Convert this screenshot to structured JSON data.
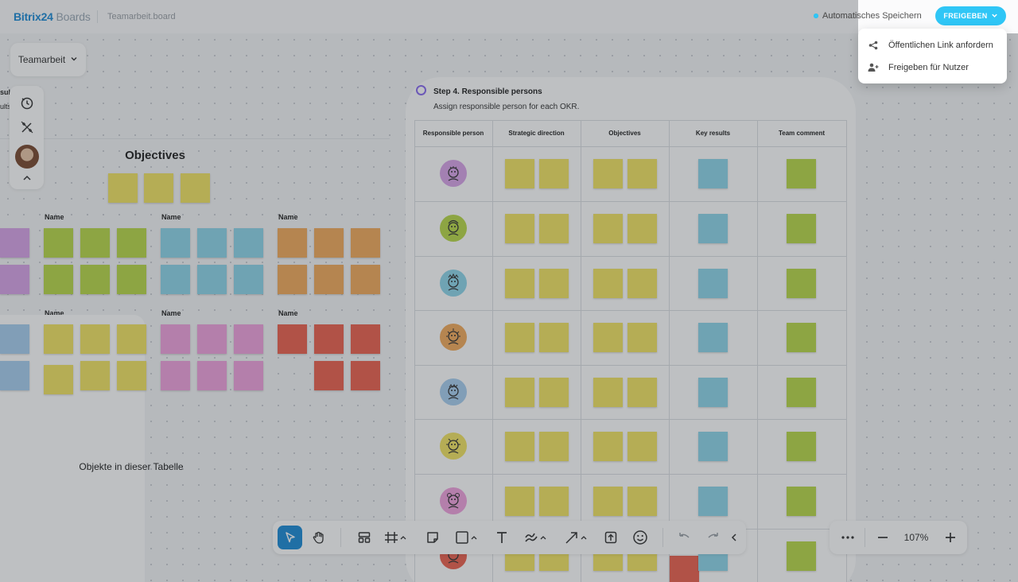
{
  "header": {
    "logo_main": "Bitrix24",
    "logo_sub": "Boards",
    "board_name": "Teamarbeit.board",
    "autosave_label": "Automatisches Speichern",
    "share_button": "FREIGEBEN"
  },
  "share_menu": {
    "items": [
      {
        "label": "Öffentlichen Link anfordern",
        "icon": "share-icon"
      },
      {
        "label": "Freigeben für Nutzer",
        "icon": "add-user-icon"
      }
    ]
  },
  "board_selector": {
    "label": "Teamarbeit"
  },
  "left_tools": [
    "history-icon",
    "magic-icon",
    "avatar",
    "chevron-up-icon"
  ],
  "left_section": {
    "fragment_1": "sult",
    "fragment_2": "ults",
    "objectives_title": "Objectives",
    "group_label": "Name",
    "table_hint": "Objekte in dieser Tabelle"
  },
  "step4": {
    "title": "Step 4. Responsible persons",
    "subtitle": "Assign responsible person for each OKR.",
    "columns": [
      "Responsible person",
      "Strategic direction",
      "Objectives",
      "Key results",
      "Team comment"
    ]
  },
  "toolbar": {
    "tools": [
      "select-icon",
      "hand-icon",
      "layout-icon",
      "frame-icon",
      "sticky-note-icon",
      "shape-icon",
      "text-icon",
      "pen-icon",
      "arrow-icon",
      "upload-icon",
      "emoji-icon",
      "undo-icon",
      "redo-icon",
      "collapse-icon"
    ]
  },
  "zoom": {
    "value": "107%"
  },
  "colors": {
    "accent": "#2fc6f6",
    "brand": "#1e8bd6",
    "note_yellow": "#f2e463",
    "note_blue": "#8fd6ea",
    "note_green": "#b9d94a",
    "note_orange": "#f3ab5c",
    "note_pink": "#f1a2df",
    "note_red": "#ec6250",
    "note_purple": "#d8a4e8",
    "note_lightblue": "#a8cff0"
  }
}
